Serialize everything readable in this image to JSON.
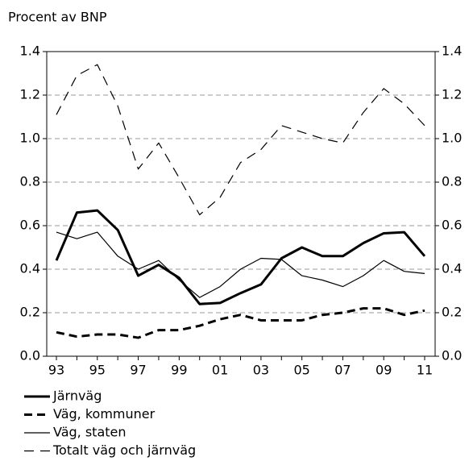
{
  "chart_data": {
    "type": "line",
    "title": "Procent av BNP",
    "categories": [
      "93",
      null,
      "95",
      null,
      "97",
      null,
      "99",
      null,
      "01",
      null,
      "03",
      null,
      "05",
      null,
      "07",
      null,
      "09",
      null,
      "11"
    ],
    "series": [
      {
        "name": "Järnväg",
        "color": "#000000",
        "linewidth": 3,
        "linestyle": "solid",
        "values": [
          0.44,
          0.66,
          0.67,
          0.58,
          0.37,
          0.42,
          0.36,
          0.24,
          0.245,
          0.29,
          0.33,
          0.45,
          0.5,
          0.46,
          0.46,
          0.52,
          0.565,
          0.57,
          0.46
        ]
      },
      {
        "name": "Väg, kommuner",
        "color": "#000000",
        "linewidth": 3,
        "linestyle": "dashed",
        "values": [
          0.11,
          0.09,
          0.1,
          0.1,
          0.085,
          0.12,
          0.12,
          0.14,
          0.17,
          0.19,
          0.165,
          0.165,
          0.165,
          0.19,
          0.2,
          0.22,
          0.22,
          0.19,
          0.21
        ]
      },
      {
        "name": "Väg, staten",
        "color": "#000000",
        "linewidth": 1.2,
        "linestyle": "solid",
        "values": [
          0.57,
          0.54,
          0.57,
          0.46,
          0.4,
          0.44,
          0.35,
          0.27,
          0.32,
          0.4,
          0.45,
          0.445,
          0.37,
          0.35,
          0.32,
          0.37,
          0.44,
          0.39,
          0.38
        ]
      },
      {
        "name": "Totalt väg och järnväg",
        "color": "#000000",
        "linewidth": 1.2,
        "linestyle": "dashed",
        "values": [
          1.11,
          1.29,
          1.34,
          1.15,
          0.86,
          0.98,
          0.82,
          0.65,
          0.73,
          0.89,
          0.95,
          1.06,
          1.03,
          1.0,
          0.98,
          1.12,
          1.23,
          1.16,
          1.06
        ]
      }
    ],
    "ylim": [
      0,
      1.4
    ],
    "yticks": [
      {
        "value": 0,
        "label": "0.0"
      },
      0.2,
      0.4,
      0.6,
      0.8,
      {
        "value": 1,
        "label": "1.0"
      },
      1.2,
      1.4
    ],
    "y2lim": [
      0,
      1.4
    ],
    "y2ticks": [
      {
        "value": 0,
        "label": "0.0"
      },
      0.2,
      0.4,
      0.6,
      0.8,
      {
        "value": 1,
        "label": "1.0"
      },
      1.2,
      1.4
    ],
    "grid": true,
    "legend": "bottom"
  }
}
